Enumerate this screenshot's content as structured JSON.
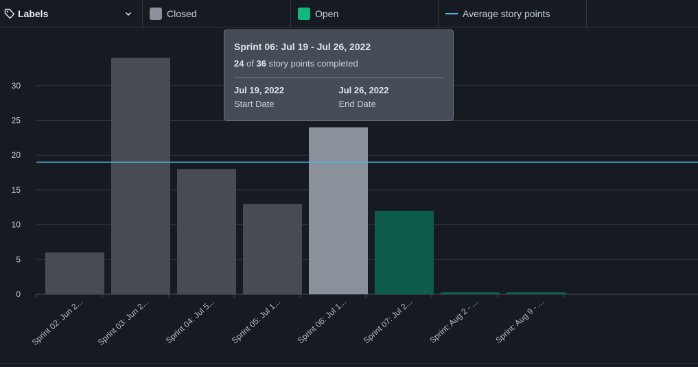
{
  "legend": {
    "labels_button": "Labels",
    "closed": {
      "label": "Closed",
      "color": "#8b919a"
    },
    "open": {
      "label": "Open",
      "color": "#10b981"
    },
    "average": {
      "label": "Average story points",
      "color": "#4fb7e8"
    }
  },
  "tooltip": {
    "title": "Sprint 06: Jul 19 - Jul 26, 2022",
    "completed": "24",
    "of": "of",
    "total": "36",
    "suffix": "story points completed",
    "start_date": "Jul 19, 2022",
    "start_caption": "Start Date",
    "end_date": "Jul 26, 2022",
    "end_caption": "End Date"
  },
  "chart_data": {
    "type": "bar",
    "categories": [
      "Sprint 02: Jun 2...",
      "Sprint 03: Jun 2...",
      "Sprint 04: Jul 5...",
      "Sprint 05: Jul 1...",
      "Sprint 06: Jul 1...",
      "Sprint 07: Jul 2...",
      "Sprint: Aug 2 - ...",
      "Sprint: Aug 9 - ..."
    ],
    "values": [
      6,
      34,
      18,
      13,
      24,
      12,
      0.3,
      0.3
    ],
    "status": [
      "Closed",
      "Closed",
      "Closed",
      "Closed",
      "Closed",
      "Open",
      "Open",
      "Open"
    ],
    "highlighted_index": 4,
    "average": 19,
    "yticks": [
      0,
      5,
      10,
      15,
      20,
      25,
      30
    ],
    "ylim": [
      0,
      36
    ],
    "grid": true,
    "colors": {
      "closed": "#474c53",
      "closed_highlight": "#8b919a",
      "open": "#0e5c4a",
      "average": "#4fb7e8",
      "grid": "#30363d",
      "axis": "#484f58",
      "tick_text": "#c9d1d9"
    }
  }
}
